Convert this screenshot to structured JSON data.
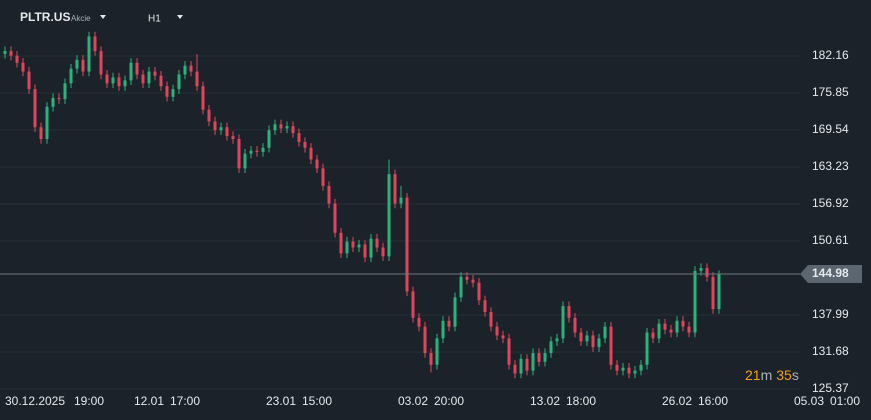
{
  "toolbar": {
    "symbol": "PLTR.US",
    "asset_type": "Akcie",
    "timeframe": "H1"
  },
  "countdown": {
    "minutes": "21",
    "minutes_unit": "m",
    "seconds": "35",
    "seconds_unit": "s"
  },
  "chart_data": {
    "type": "candlestick",
    "up_color": "#2bb37d",
    "down_color": "#e0455c",
    "ylim": [
      122.64,
      190.0
    ],
    "yticks": [
      125.37,
      131.68,
      137.99,
      150.61,
      156.92,
      163.23,
      169.54,
      175.85,
      182.16
    ],
    "grid": true,
    "last_price": 144.98,
    "categories": [
      null,
      null,
      null,
      null,
      null,
      "30.12.2025",
      null,
      null,
      null,
      null,
      null,
      null,
      null,
      null,
      "19:00",
      null,
      null,
      null,
      null,
      null,
      null,
      null,
      null,
      null,
      "12.01",
      null,
      null,
      null,
      null,
      null,
      "17:00",
      null,
      null,
      null,
      null,
      null,
      null,
      null,
      null,
      null,
      null,
      null,
      null,
      null,
      null,
      null,
      "23.01",
      null,
      null,
      null,
      null,
      null,
      "15:00",
      null,
      null,
      null,
      null,
      null,
      null,
      null,
      null,
      null,
      null,
      null,
      null,
      null,
      null,
      null,
      "03.02",
      null,
      null,
      null,
      null,
      null,
      "20:00",
      null,
      null,
      null,
      null,
      null,
      null,
      null,
      null,
      null,
      null,
      null,
      null,
      null,
      null,
      null,
      "13.02",
      null,
      null,
      null,
      null,
      null,
      "18:00",
      null,
      null,
      null,
      null,
      null,
      null,
      null,
      null,
      null,
      null,
      null,
      null,
      null,
      null,
      null,
      "26.02",
      null,
      null,
      null,
      null,
      null,
      "16:00",
      null,
      null,
      null,
      null,
      null,
      null,
      null,
      null,
      null,
      null,
      null,
      null,
      null,
      null,
      null,
      "05.03",
      null,
      null,
      null,
      null,
      null,
      "01:00"
    ],
    "open": [
      182.5,
      183.0,
      182.2,
      181.0,
      179.5,
      176.5,
      170.0,
      168.0,
      173.5,
      175.0,
      174.8,
      177.5,
      180.0,
      181.5,
      179.5,
      185.5,
      183.0,
      179.0,
      177.5,
      178.5,
      177.0,
      178.0,
      181.0,
      179.0,
      177.5,
      179.5,
      178.8,
      177.0,
      175.2,
      176.5,
      179.0,
      180.5,
      179.5,
      177.0,
      173.0,
      171.0,
      169.5,
      170.0,
      168.5,
      168.0,
      163.0,
      165.5,
      166.0,
      165.8,
      166.5,
      169.5,
      170.5,
      169.8,
      170.2,
      169.0,
      167.5,
      166.5,
      164.5,
      163.0,
      160.0,
      157.0,
      152.0,
      148.5,
      150.5,
      149.5,
      150.0,
      147.8,
      151.0,
      149.5,
      148.0,
      162.0,
      157.0,
      158.0,
      142.0,
      137.5,
      136.0,
      131.5,
      129.5,
      134.0,
      137.0,
      136.0,
      141.0,
      144.5,
      144.0,
      143.5,
      140.5,
      138.5,
      136.0,
      134.5,
      134.0,
      129.5,
      128.0,
      130.5,
      128.5,
      131.5,
      130.0,
      131.5,
      133.5,
      134.0,
      139.5,
      137.5,
      135.0,
      133.5,
      134.5,
      132.5,
      134.0,
      136.0,
      129.5,
      128.5,
      129.0,
      128.0,
      128.5,
      129.5,
      135.0,
      134.0,
      136.5,
      135.5,
      135.0,
      137.0,
      136.0,
      135.0,
      145.5,
      146.0,
      144.5,
      139.0,
      null,
      null,
      null,
      null,
      null,
      null,
      null,
      null,
      null,
      null,
      null,
      null,
      null,
      null,
      null,
      null,
      null,
      null,
      null,
      null,
      null
    ],
    "high": [
      183.8,
      183.8,
      183.0,
      181.8,
      180.3,
      177.3,
      170.8,
      174.3,
      175.8,
      175.8,
      178.3,
      180.8,
      182.3,
      182.3,
      186.3,
      186.3,
      183.8,
      179.8,
      179.3,
      179.3,
      178.8,
      181.8,
      181.8,
      179.8,
      180.3,
      180.3,
      179.6,
      177.8,
      177.3,
      179.8,
      181.3,
      181.3,
      182.5,
      177.8,
      173.8,
      171.8,
      170.8,
      170.8,
      169.3,
      168.8,
      166.3,
      166.8,
      166.8,
      167.3,
      170.3,
      171.3,
      171.3,
      171.0,
      171.0,
      169.8,
      168.3,
      167.3,
      165.3,
      163.8,
      160.8,
      157.8,
      152.8,
      151.3,
      151.3,
      150.8,
      150.8,
      151.8,
      151.8,
      150.3,
      164.5,
      162.8,
      160.0,
      158.8,
      142.8,
      138.3,
      136.8,
      132.3,
      134.8,
      137.8,
      137.8,
      141.8,
      145.3,
      145.3,
      144.8,
      144.3,
      141.3,
      139.3,
      136.8,
      135.3,
      134.8,
      130.3,
      131.3,
      131.3,
      132.3,
      132.3,
      132.3,
      134.3,
      134.8,
      140.3,
      140.3,
      138.3,
      135.8,
      135.3,
      135.3,
      134.8,
      136.8,
      136.8,
      130.3,
      129.8,
      129.8,
      129.3,
      130.3,
      135.8,
      135.8,
      137.3,
      137.3,
      136.3,
      137.8,
      137.8,
      136.8,
      146.3,
      146.8,
      146.8,
      145.3,
      145.6,
      null,
      null,
      null,
      null,
      null,
      null,
      null,
      null,
      null,
      null,
      null,
      null,
      null,
      null,
      null,
      null,
      null,
      null,
      null,
      null,
      null
    ],
    "low": [
      181.7,
      181.4,
      180.2,
      178.7,
      175.7,
      169.2,
      167.2,
      167.2,
      172.7,
      174.0,
      174.0,
      176.7,
      179.2,
      178.7,
      178.7,
      182.2,
      178.2,
      176.7,
      176.7,
      176.2,
      176.2,
      177.2,
      178.2,
      176.7,
      176.7,
      178.0,
      176.2,
      174.4,
      174.4,
      175.7,
      178.2,
      178.7,
      176.2,
      172.2,
      170.2,
      168.7,
      168.7,
      167.7,
      167.2,
      162.2,
      162.2,
      164.7,
      165.0,
      165.0,
      165.7,
      168.7,
      169.0,
      169.0,
      168.2,
      166.7,
      165.7,
      163.7,
      162.2,
      159.2,
      156.2,
      151.2,
      147.7,
      147.7,
      148.7,
      148.7,
      147.0,
      147.0,
      148.7,
      147.2,
      147.2,
      156.2,
      156.2,
      141.2,
      136.7,
      135.2,
      130.7,
      128.2,
      128.7,
      133.2,
      135.2,
      135.2,
      140.2,
      143.2,
      142.7,
      139.7,
      137.7,
      135.2,
      133.7,
      133.2,
      128.7,
      127.2,
      127.2,
      127.7,
      127.7,
      129.2,
      129.2,
      130.7,
      132.7,
      133.2,
      136.7,
      134.2,
      132.7,
      132.7,
      131.7,
      131.7,
      133.2,
      128.7,
      127.7,
      127.7,
      127.2,
      127.2,
      127.7,
      128.7,
      133.2,
      133.2,
      134.7,
      134.2,
      134.2,
      135.2,
      134.2,
      134.2,
      144.7,
      143.7,
      138.2,
      138.2,
      null,
      null,
      null,
      null,
      null,
      null,
      null,
      null,
      null,
      null,
      null,
      null,
      null,
      null,
      null,
      null,
      null,
      null,
      null,
      null,
      null
    ],
    "close": [
      183.0,
      182.2,
      181.0,
      179.5,
      176.5,
      170.0,
      168.0,
      173.5,
      175.0,
      174.8,
      177.5,
      180.0,
      181.5,
      179.5,
      185.5,
      183.0,
      179.0,
      177.5,
      178.5,
      177.0,
      178.0,
      181.0,
      179.0,
      177.5,
      179.5,
      178.8,
      177.0,
      175.2,
      176.5,
      179.0,
      180.5,
      179.5,
      177.0,
      173.0,
      171.0,
      169.5,
      170.0,
      168.5,
      168.0,
      163.0,
      165.5,
      166.0,
      165.8,
      166.5,
      169.5,
      170.5,
      169.8,
      170.2,
      169.0,
      167.5,
      166.5,
      164.5,
      163.0,
      160.0,
      157.0,
      152.0,
      148.5,
      150.5,
      149.5,
      150.0,
      147.8,
      151.0,
      149.5,
      148.0,
      162.0,
      157.0,
      158.0,
      142.0,
      137.5,
      136.0,
      131.5,
      129.5,
      134.0,
      137.0,
      136.0,
      141.0,
      144.5,
      144.0,
      143.5,
      140.5,
      138.5,
      136.0,
      134.5,
      134.0,
      129.5,
      128.0,
      130.5,
      128.5,
      131.5,
      130.0,
      131.5,
      133.5,
      134.0,
      139.5,
      137.5,
      135.0,
      133.5,
      134.5,
      132.5,
      134.0,
      136.0,
      129.5,
      128.5,
      129.0,
      128.0,
      128.5,
      129.5,
      135.0,
      134.0,
      136.5,
      135.5,
      135.0,
      137.0,
      136.0,
      135.0,
      145.5,
      146.0,
      144.5,
      139.0,
      144.98,
      null,
      null,
      null,
      null,
      null,
      null,
      null,
      null,
      null,
      null,
      null,
      null,
      null,
      null,
      null,
      null,
      null,
      null,
      null,
      null,
      null
    ]
  }
}
